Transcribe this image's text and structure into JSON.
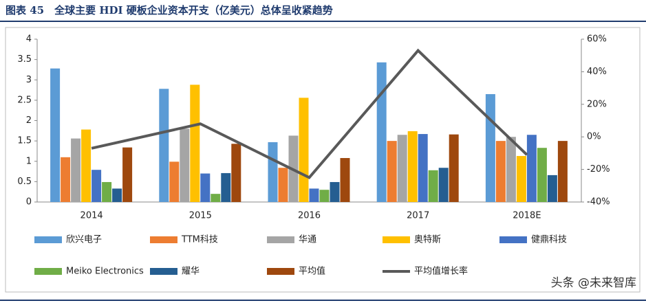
{
  "chart_data": {
    "type": "bar",
    "title": "图表 45　全球主要 HDI 硬板企业资本开支（亿美元）总体呈收紧趋势",
    "categories": [
      "2014",
      "2015",
      "2016",
      "2017",
      "2018E"
    ],
    "series": [
      {
        "name": "欣兴电子",
        "color": "#5b9bd5",
        "values": [
          3.28,
          2.78,
          1.47,
          3.43,
          2.65
        ]
      },
      {
        "name": "TTM科技",
        "color": "#ed7d31",
        "values": [
          1.1,
          0.99,
          0.84,
          1.5,
          1.5
        ]
      },
      {
        "name": "华通",
        "color": "#a5a5a5",
        "values": [
          1.56,
          1.8,
          1.63,
          1.65,
          1.6
        ]
      },
      {
        "name": "奥特斯",
        "color": "#ffc000",
        "values": [
          1.78,
          2.88,
          2.56,
          1.74,
          1.13
        ]
      },
      {
        "name": "健鼎科技",
        "color": "#4472c4",
        "values": [
          0.79,
          0.7,
          0.33,
          1.67,
          1.65
        ]
      },
      {
        "name": "Meiko Electronics",
        "color": "#70ad47",
        "values": [
          0.49,
          0.2,
          0.3,
          0.78,
          1.33
        ]
      },
      {
        "name": "耀华",
        "color": "#255e91",
        "values": [
          0.33,
          0.71,
          0.49,
          0.84,
          0.66
        ]
      },
      {
        "name": "平均值",
        "color": "#9e480e",
        "values": [
          1.34,
          1.43,
          1.08,
          1.66,
          1.5
        ]
      },
      {
        "name": "平均值增长率",
        "color": "#595959",
        "type": "line",
        "axis": "y2",
        "values": [
          -7,
          8,
          -25,
          53,
          -11
        ]
      }
    ],
    "ylim": [
      0,
      4
    ],
    "yticks": [
      0,
      0.5,
      1,
      1.5,
      2,
      2.5,
      3,
      3.5,
      4
    ],
    "y2lim": [
      -40,
      60
    ],
    "y2ticks": [
      {
        "value": -40,
        "label": "-40%"
      },
      {
        "value": -20,
        "label": "-20%"
      },
      {
        "value": 0,
        "label": "0%"
      },
      {
        "value": 20,
        "label": "20%"
      },
      {
        "value": 40,
        "label": "40%"
      },
      {
        "value": 60,
        "label": "60%"
      }
    ],
    "legend": "bottom",
    "grid": false
  },
  "watermark": "头条 @未来智库"
}
